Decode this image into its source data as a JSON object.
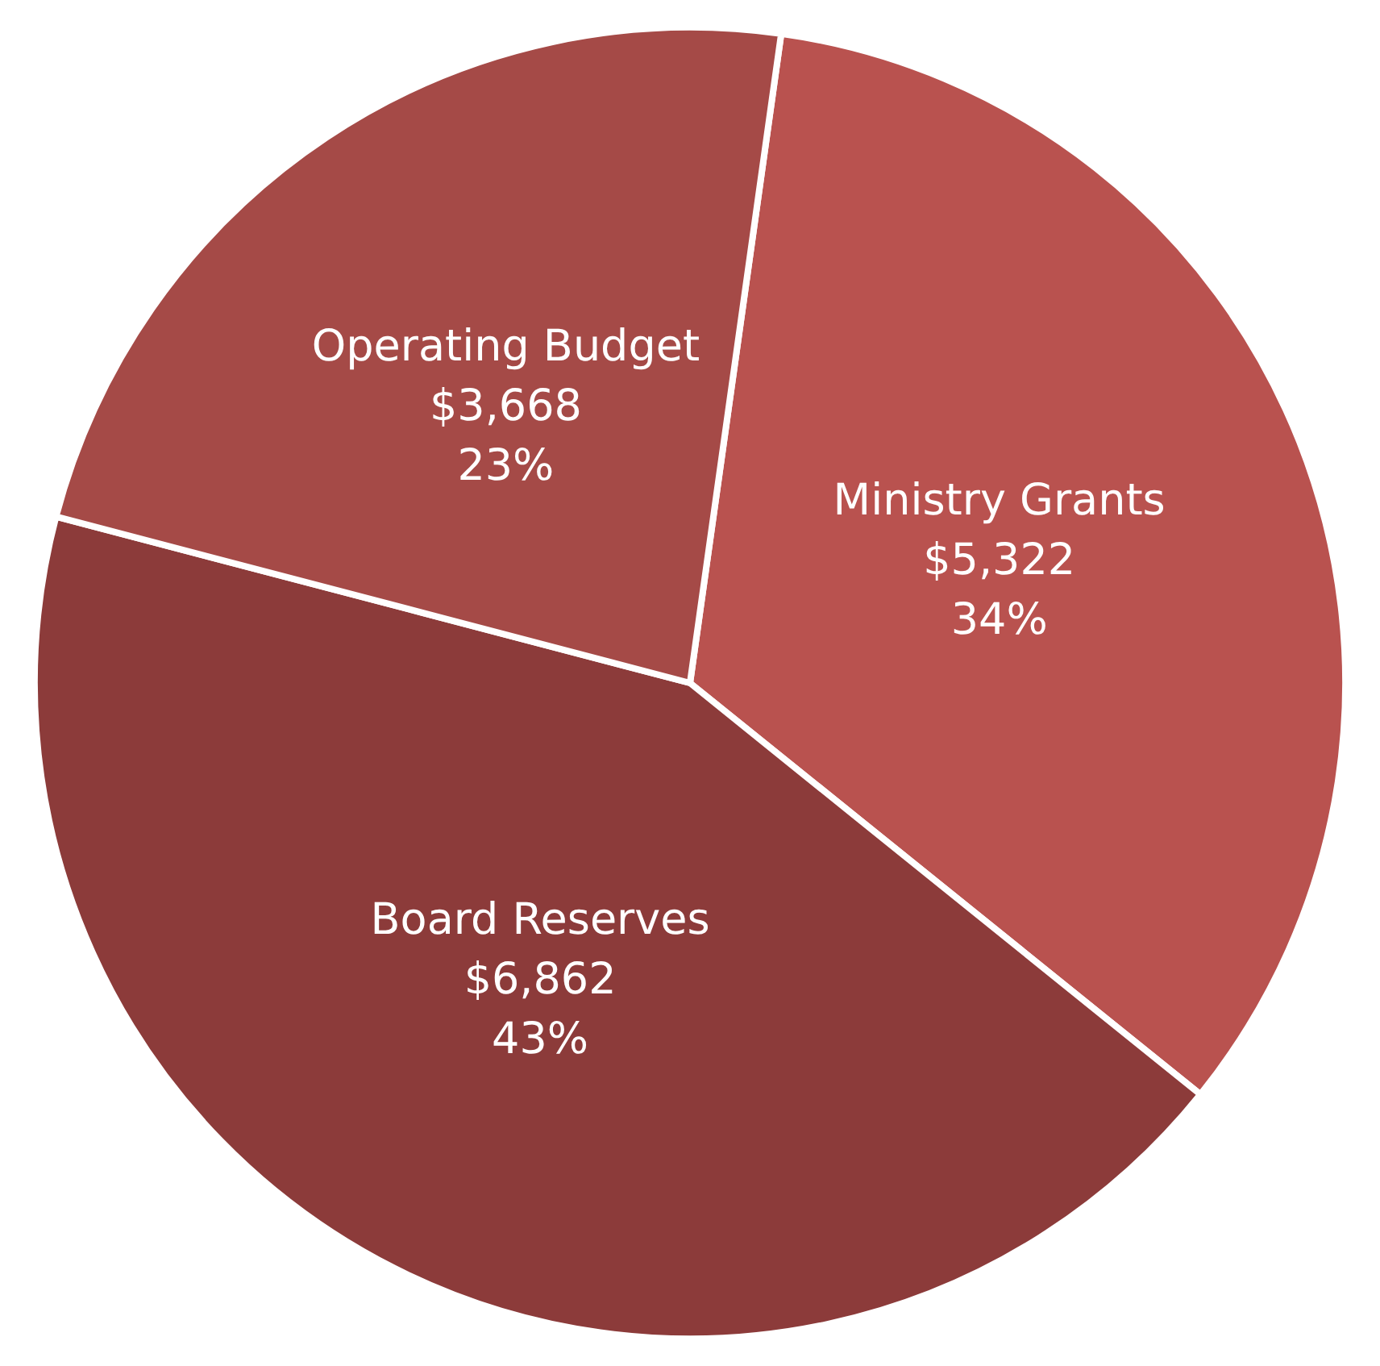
{
  "chart_data": {
    "type": "pie",
    "categories": [
      "Ministry Grants",
      "Board Reserves",
      "Operating Budget"
    ],
    "values": [
      5322,
      6862,
      3668
    ],
    "value_labels": [
      "$5,322\n34%",
      "$6,862\n43%",
      "$3,668\n23%"
    ],
    "colors": [
      "#b9524f",
      "#8c3b3a",
      "#a54a47"
    ]
  }
}
